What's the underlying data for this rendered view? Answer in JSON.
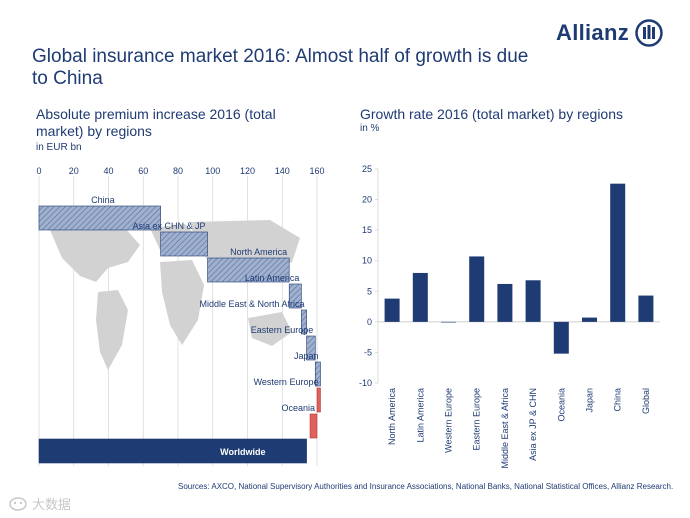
{
  "brand": {
    "name": "Allianz"
  },
  "title": "Global insurance market 2016: Almost half of growth is due to China",
  "left_panel": {
    "subtitle": "Absolute premium  increase 2016 (total market)  by regions",
    "unit": "in EUR bn"
  },
  "right_panel": {
    "subtitle": "Growth rate 2016 (total market)  by regions",
    "unit": "in %"
  },
  "source": "Sources: AXCO, National Supervisory Authorities and Insurance Associations, National Banks, National Statistical Offices, Allianz Research.",
  "watermark": "大数据",
  "colors": {
    "navy": "#1f3b73",
    "hatch_fill": "#8aa0c4",
    "negative": "#e0605c",
    "grid": "#d4d4d4",
    "map": "#d2d2d2"
  },
  "chart_data": [
    {
      "type": "bar",
      "subtype": "waterfall",
      "title": "Absolute premium  increase 2016 (total market)  by regions",
      "unit": "in EUR bn",
      "orientation": "horizontal",
      "xlim": [
        0,
        160
      ],
      "xticks": [
        0,
        20,
        40,
        60,
        80,
        100,
        120,
        140,
        160
      ],
      "categories": [
        "China",
        "Asia ex CHN & JP",
        "North America",
        "Latin America",
        "Middle East & North Africa",
        "Eastern Europe",
        "Japan",
        "Western Europe",
        "Oceania",
        "Worldwide"
      ],
      "values": [
        70,
        27,
        47,
        7,
        3,
        5,
        3,
        -2,
        -4,
        154
      ],
      "total_category": "Worldwide"
    },
    {
      "type": "bar",
      "title": "Growth rate 2016 (total market)  by regions",
      "unit": "in %",
      "ylim": [
        -10,
        25
      ],
      "yticks": [
        -10,
        -5,
        0,
        5,
        10,
        15,
        20,
        25
      ],
      "categories": [
        "North America",
        "Latin America",
        "Western Europe",
        "Eastern Europe",
        "Middle East & Africa",
        "Asia ex JP & CHN",
        "Oceania",
        "Japan",
        "China",
        "Global"
      ],
      "values": [
        3.8,
        8.0,
        0.0,
        10.7,
        6.2,
        6.8,
        -5.2,
        0.7,
        22.6,
        4.3
      ]
    }
  ]
}
